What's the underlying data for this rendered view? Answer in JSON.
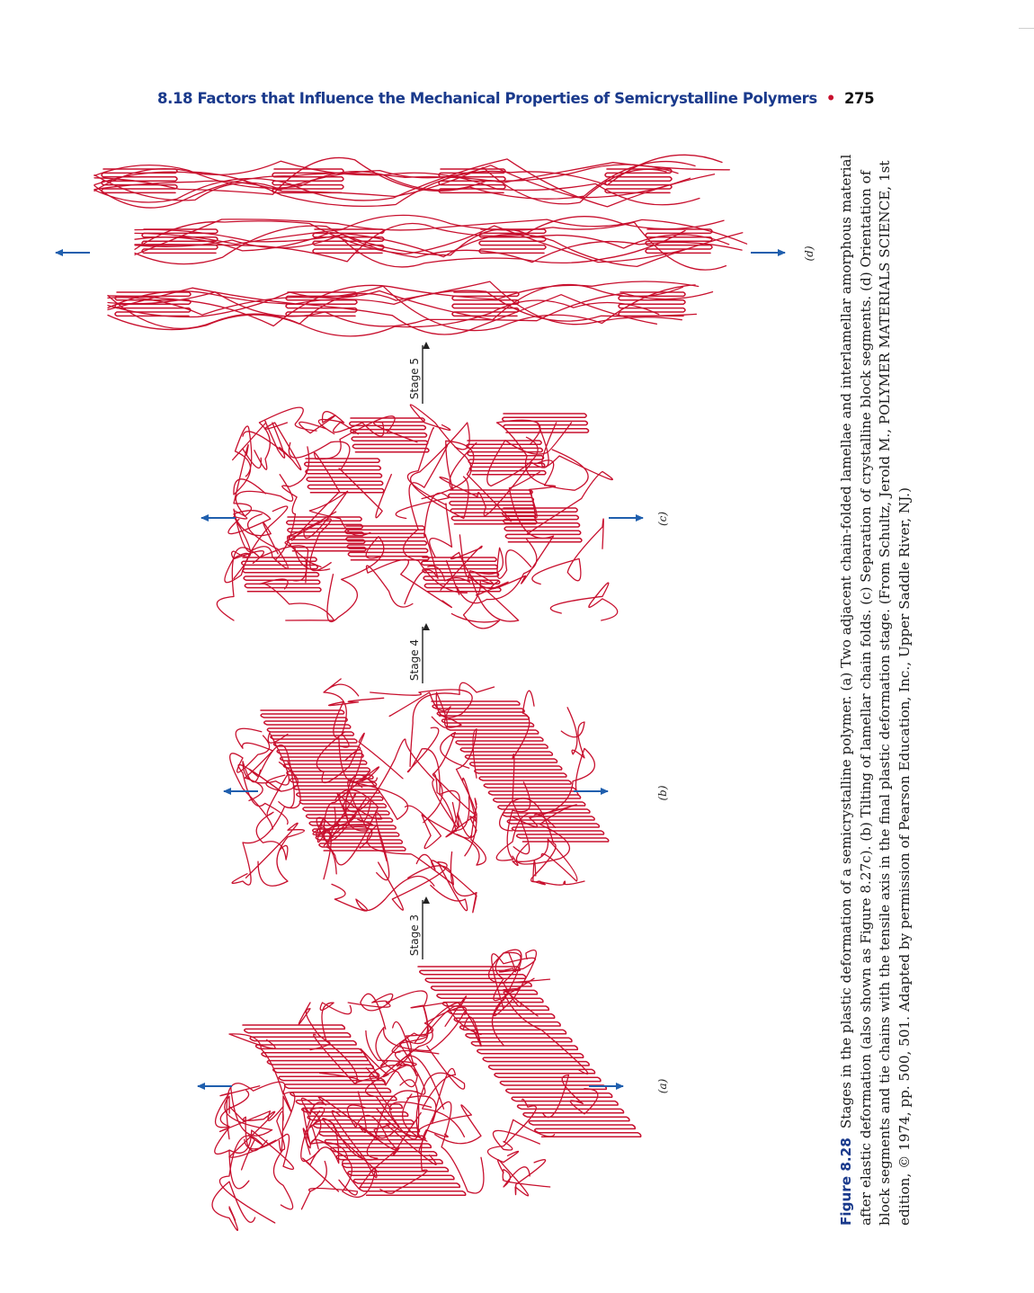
{
  "header": {
    "section_title": "8.18 Factors that Influence the Mechanical Properties of Semicrystalline Polymers",
    "bullet": "•",
    "page_number": "275"
  },
  "figure": {
    "panels": {
      "a": "(a)",
      "b": "(b)",
      "c": "(c)",
      "d": "(d)"
    },
    "stages": [
      "Stage 3",
      "Stage 4",
      "Stage 5"
    ],
    "colors": {
      "chain": "#c8102e",
      "arrow": "#1f5fae",
      "stage_arrow": "#222222"
    },
    "caption": {
      "label": "Figure 8.28",
      "text": "Stages in the plastic deformation of a semicrystalline polymer. (a) Two adjacent chain-folded lamellae and interlamellar amorphous material after elastic deformation (also shown as Figure 8.27c). (b) Tilting of lamellar chain folds. (c) Separation of crystalline block segments. (d) Orientation of block segments and tie chains with the tensile axis in the final plastic deformation stage. (From Schultz, Jerold M., POLYMER MATERIALS SCIENCE, 1st edition, © 1974, pp. 500, 501. Adapted by permission of Pearson Education, Inc., Upper Saddle River, NJ.)"
    }
  }
}
